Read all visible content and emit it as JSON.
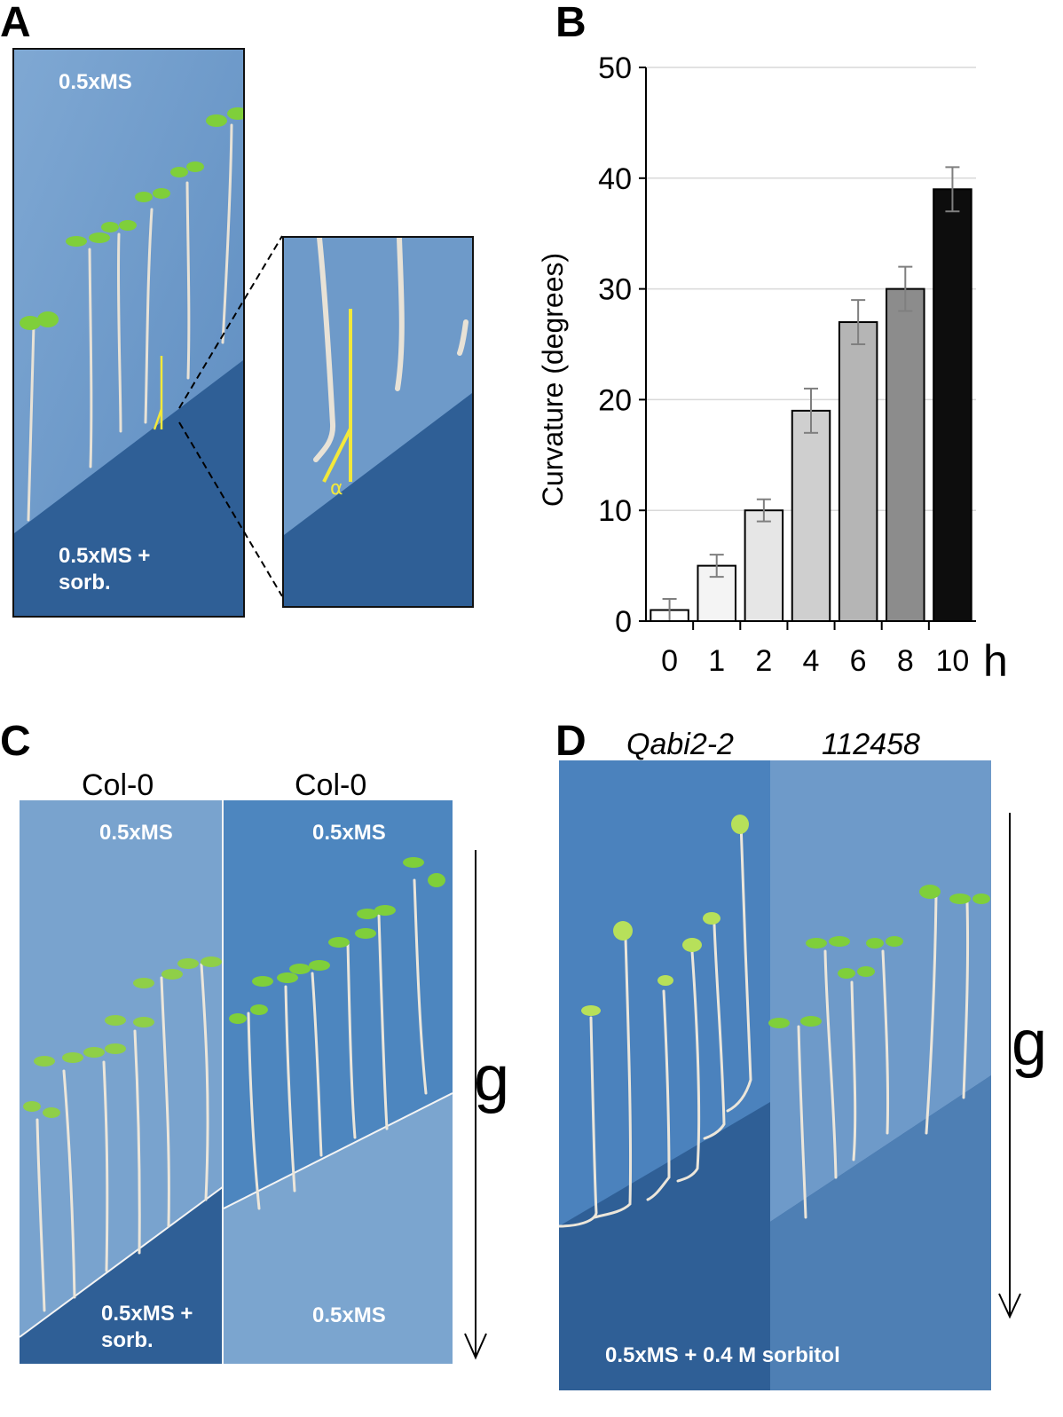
{
  "panels": {
    "a": {
      "letter": "A",
      "top_medium": "0.5xMS",
      "bottom_medium_line1": "0.5xMS +",
      "bottom_medium_line2": "sorb.",
      "angle_symbol": "α"
    },
    "b": {
      "letter": "B"
    },
    "c": {
      "letter": "C",
      "left_genotype": "Col-0",
      "right_genotype": "Col-0",
      "left_top_medium": "0.5xMS",
      "right_top_medium": "0.5xMS",
      "left_bottom_line1": "0.5xMS +",
      "left_bottom_line2": "sorb.",
      "right_bottom_medium": "0.5xMS",
      "gravity": "g"
    },
    "d": {
      "letter": "D",
      "left_genotype": "Qabi2-2",
      "right_genotype": "112458",
      "medium": "0.5xMS + 0.4 M sorbitol",
      "gravity": "g"
    }
  },
  "colors": {
    "agar_light": "#6e9ac9",
    "agar_dark": "#2f5f96",
    "annotation_yellow": "#f2e83a"
  },
  "chart_data": {
    "type": "bar",
    "categories": [
      "0",
      "1",
      "2",
      "4",
      "6",
      "8",
      "10"
    ],
    "values": [
      1,
      5,
      10,
      19,
      27,
      30,
      39
    ],
    "errors": [
      1,
      1,
      1,
      2,
      2,
      2,
      2
    ],
    "bar_colors": [
      "#ffffff",
      "#f4f4f4",
      "#e6e6e6",
      "#cfcfcf",
      "#b5b5b5",
      "#8c8c8c",
      "#0d0d0d"
    ],
    "xlabel": "h",
    "ylabel": "Curvature (degrees)",
    "ylim": [
      0,
      50
    ],
    "yticks": [
      0,
      10,
      20,
      30,
      40,
      50
    ],
    "grid": true
  }
}
